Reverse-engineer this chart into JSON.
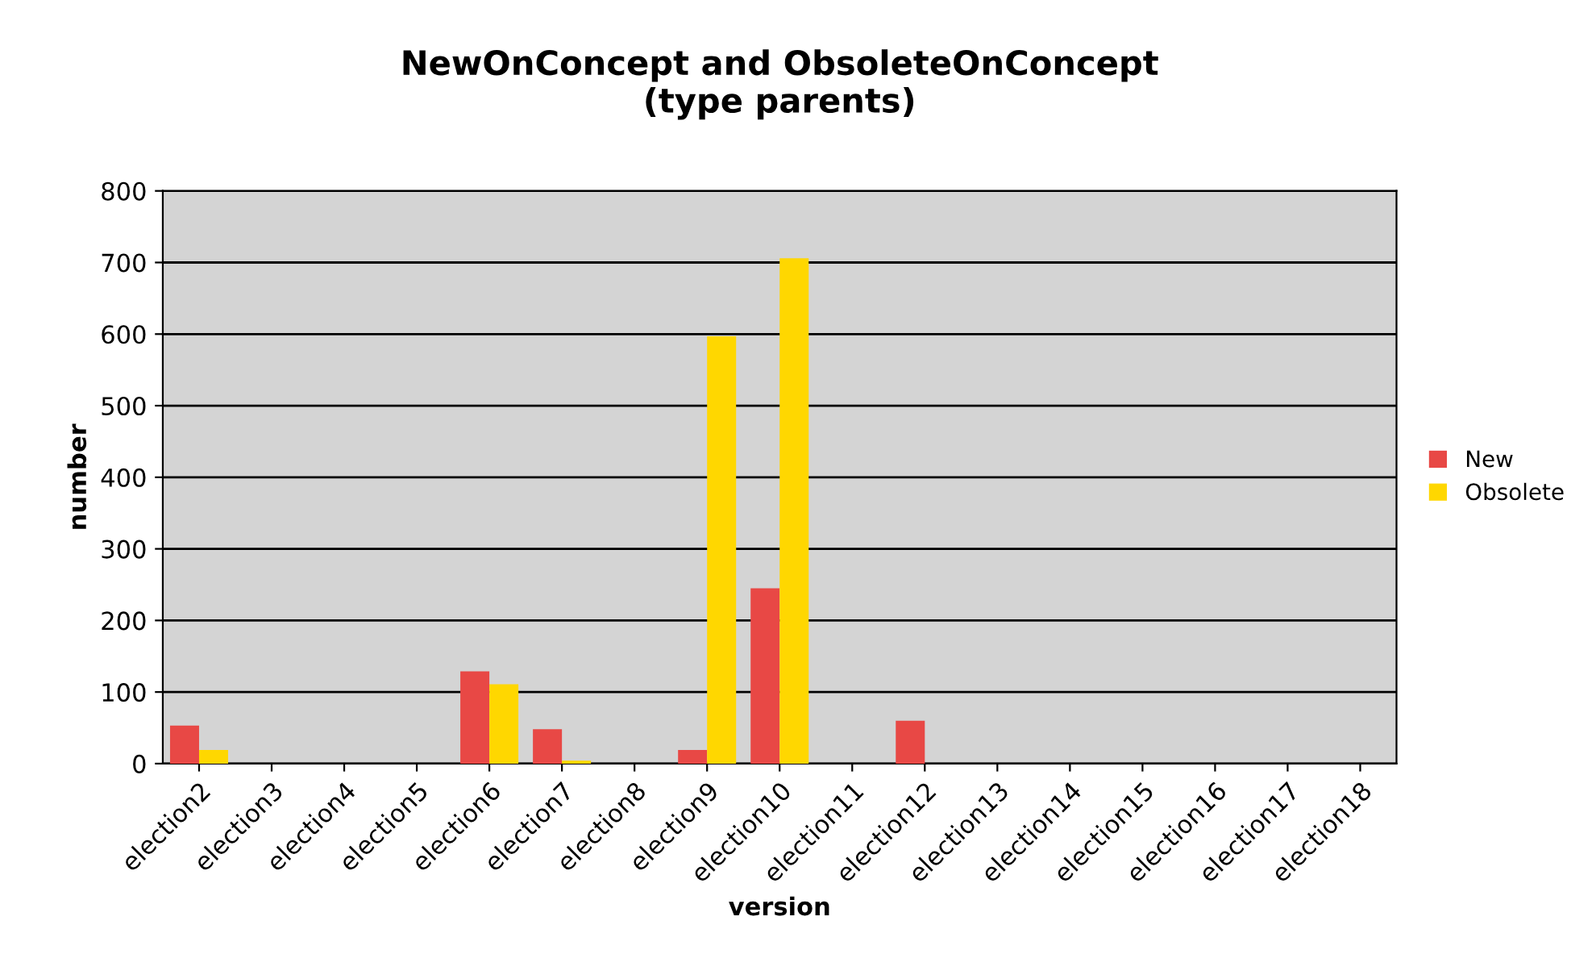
{
  "chart_data": {
    "type": "bar",
    "title": "NewOnConcept and ObsoleteOnConcept\n(type parents)",
    "xlabel": "version",
    "ylabel": "number",
    "categories": [
      "election2",
      "election3",
      "election4",
      "election5",
      "election6",
      "election7",
      "election8",
      "election9",
      "election10",
      "election11",
      "election12",
      "election13",
      "election14",
      "election15",
      "election16",
      "election17",
      "election18"
    ],
    "series": [
      {
        "name": "New",
        "color": "#e84845",
        "values": [
          53,
          0,
          0,
          0,
          129,
          48,
          0,
          19,
          245,
          0,
          60,
          0,
          0,
          0,
          0,
          0,
          0
        ]
      },
      {
        "name": "Obsolete",
        "color": "#ffd700",
        "values": [
          19,
          0,
          0,
          0,
          111,
          4,
          0,
          597,
          706,
          0,
          0,
          0,
          0,
          0,
          0,
          0,
          0
        ]
      }
    ],
    "ylim": [
      0,
      800
    ],
    "yticks": [
      0,
      100,
      200,
      300,
      400,
      500,
      600,
      700,
      800
    ],
    "grid": "y",
    "legend": "right"
  }
}
